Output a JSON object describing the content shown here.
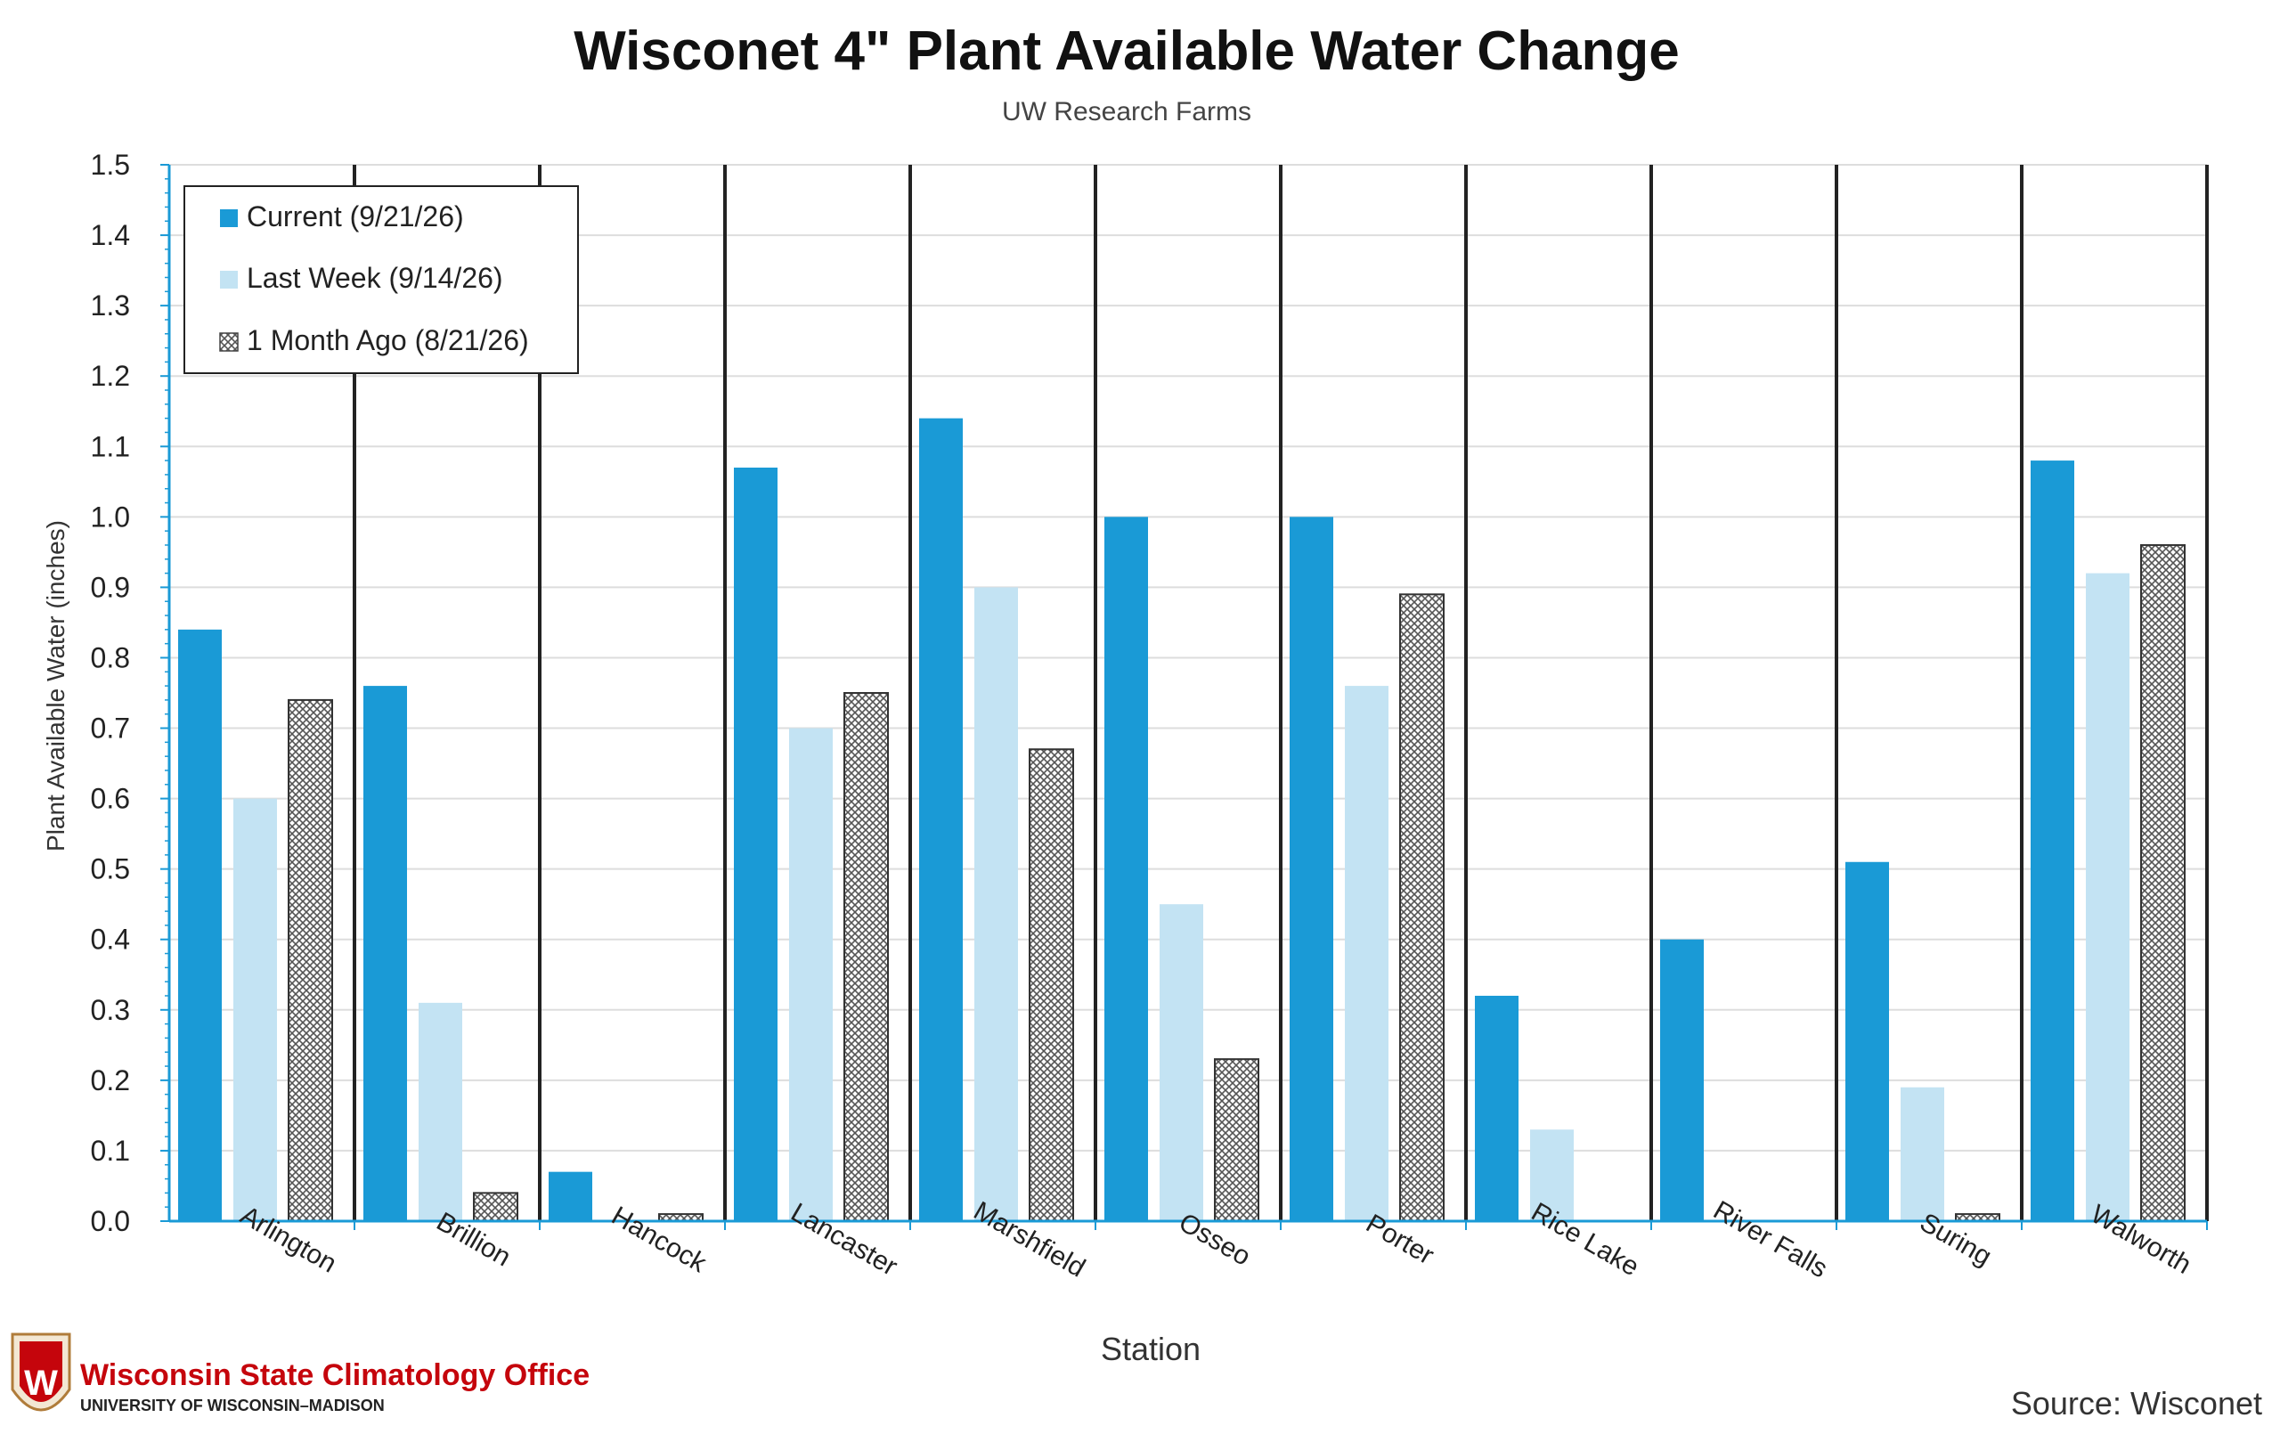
{
  "chart_data": {
    "type": "bar",
    "title": "Wisconet 4\" Plant Available Water Change",
    "subtitle": "UW Research Farms",
    "xlabel": "Station",
    "ylabel": "Plant Available Water (inches)",
    "ylim": [
      0,
      1.5
    ],
    "y_ticks": [
      "0.0",
      "0.1",
      "0.2",
      "0.3",
      "0.4",
      "0.5",
      "0.6",
      "0.7",
      "0.8",
      "0.9",
      "1.0",
      "1.1",
      "1.2",
      "1.3",
      "1.4",
      "1.5"
    ],
    "grid": true,
    "legend_position": "top-left",
    "categories": [
      "Arlington",
      "Brillion",
      "Hancock",
      "Lancaster",
      "Marshfield",
      "Osseo",
      "Porter",
      "Rice Lake",
      "River Falls",
      "Suring",
      "Walworth"
    ],
    "series": [
      {
        "name": "Current (9/21/26)",
        "color": "#1a9ad6",
        "pattern": "solid",
        "values": [
          0.84,
          0.76,
          0.07,
          1.07,
          1.14,
          1.0,
          1.0,
          0.32,
          0.4,
          0.51,
          1.08
        ]
      },
      {
        "name": "Last Week (9/14/26)",
        "color": "#c3e3f3",
        "pattern": "solid",
        "values": [
          0.6,
          0.31,
          0.0,
          0.7,
          0.9,
          0.45,
          0.76,
          0.13,
          0.0,
          0.19,
          0.92
        ]
      },
      {
        "name": "1 Month Ago (8/21/26)",
        "color": "#d0d0d0",
        "pattern": "crosshatch",
        "values": [
          0.74,
          0.04,
          0.01,
          0.75,
          0.67,
          0.23,
          0.89,
          0.0,
          0.0,
          0.01,
          0.96
        ]
      }
    ]
  },
  "branding": {
    "org_name": "Wisconsin State Climatology Office",
    "org_sub": "UNIVERSITY OF WISCONSIN–MADISON",
    "logo_letter": "W",
    "logo_icon": "uw-crest-icon",
    "source": "Source: Wisconet"
  },
  "colors": {
    "axis": "#1a9ad6",
    "brand_red": "#c5050c",
    "grid": "#dddddd",
    "separator": "#222222"
  }
}
